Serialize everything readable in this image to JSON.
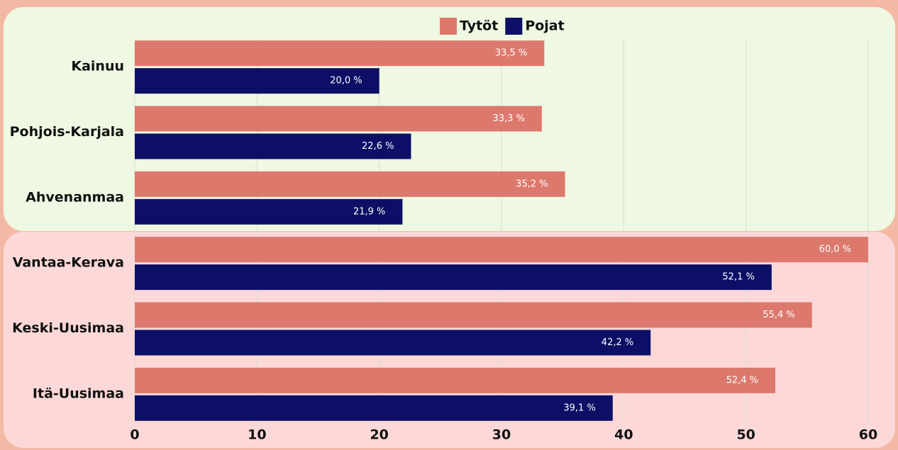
{
  "chart_data": {
    "type": "bar",
    "orientation": "horizontal",
    "categories": [
      "Kainuu",
      "Pohjois-Karjala",
      "Ahvenanmaa",
      "Vantaa-Kerava",
      "Keski-Uusimaa",
      "Itä-Uusimaa"
    ],
    "series": [
      {
        "name": "Tytöt",
        "color": "#dc796c",
        "values": [
          33.5,
          33.3,
          35.2,
          60.0,
          55.4,
          52.4
        ],
        "value_labels": [
          "33,5 %",
          "33,3 %",
          "35,2 %",
          "60,0 %",
          "55,4 %",
          "52,4 %"
        ]
      },
      {
        "name": "Pojat",
        "color": "#0d0f66",
        "values": [
          20.0,
          22.6,
          21.9,
          52.1,
          42.2,
          39.1
        ],
        "value_labels": [
          "20,0 %",
          "22,6 %",
          "21,9 %",
          "52,1 %",
          "42,2 %",
          "39,1 %"
        ]
      }
    ],
    "xlim": [
      0,
      60
    ],
    "xticks": [
      0,
      10,
      20,
      30,
      40,
      50,
      60
    ],
    "grid": true,
    "legend": "top"
  }
}
